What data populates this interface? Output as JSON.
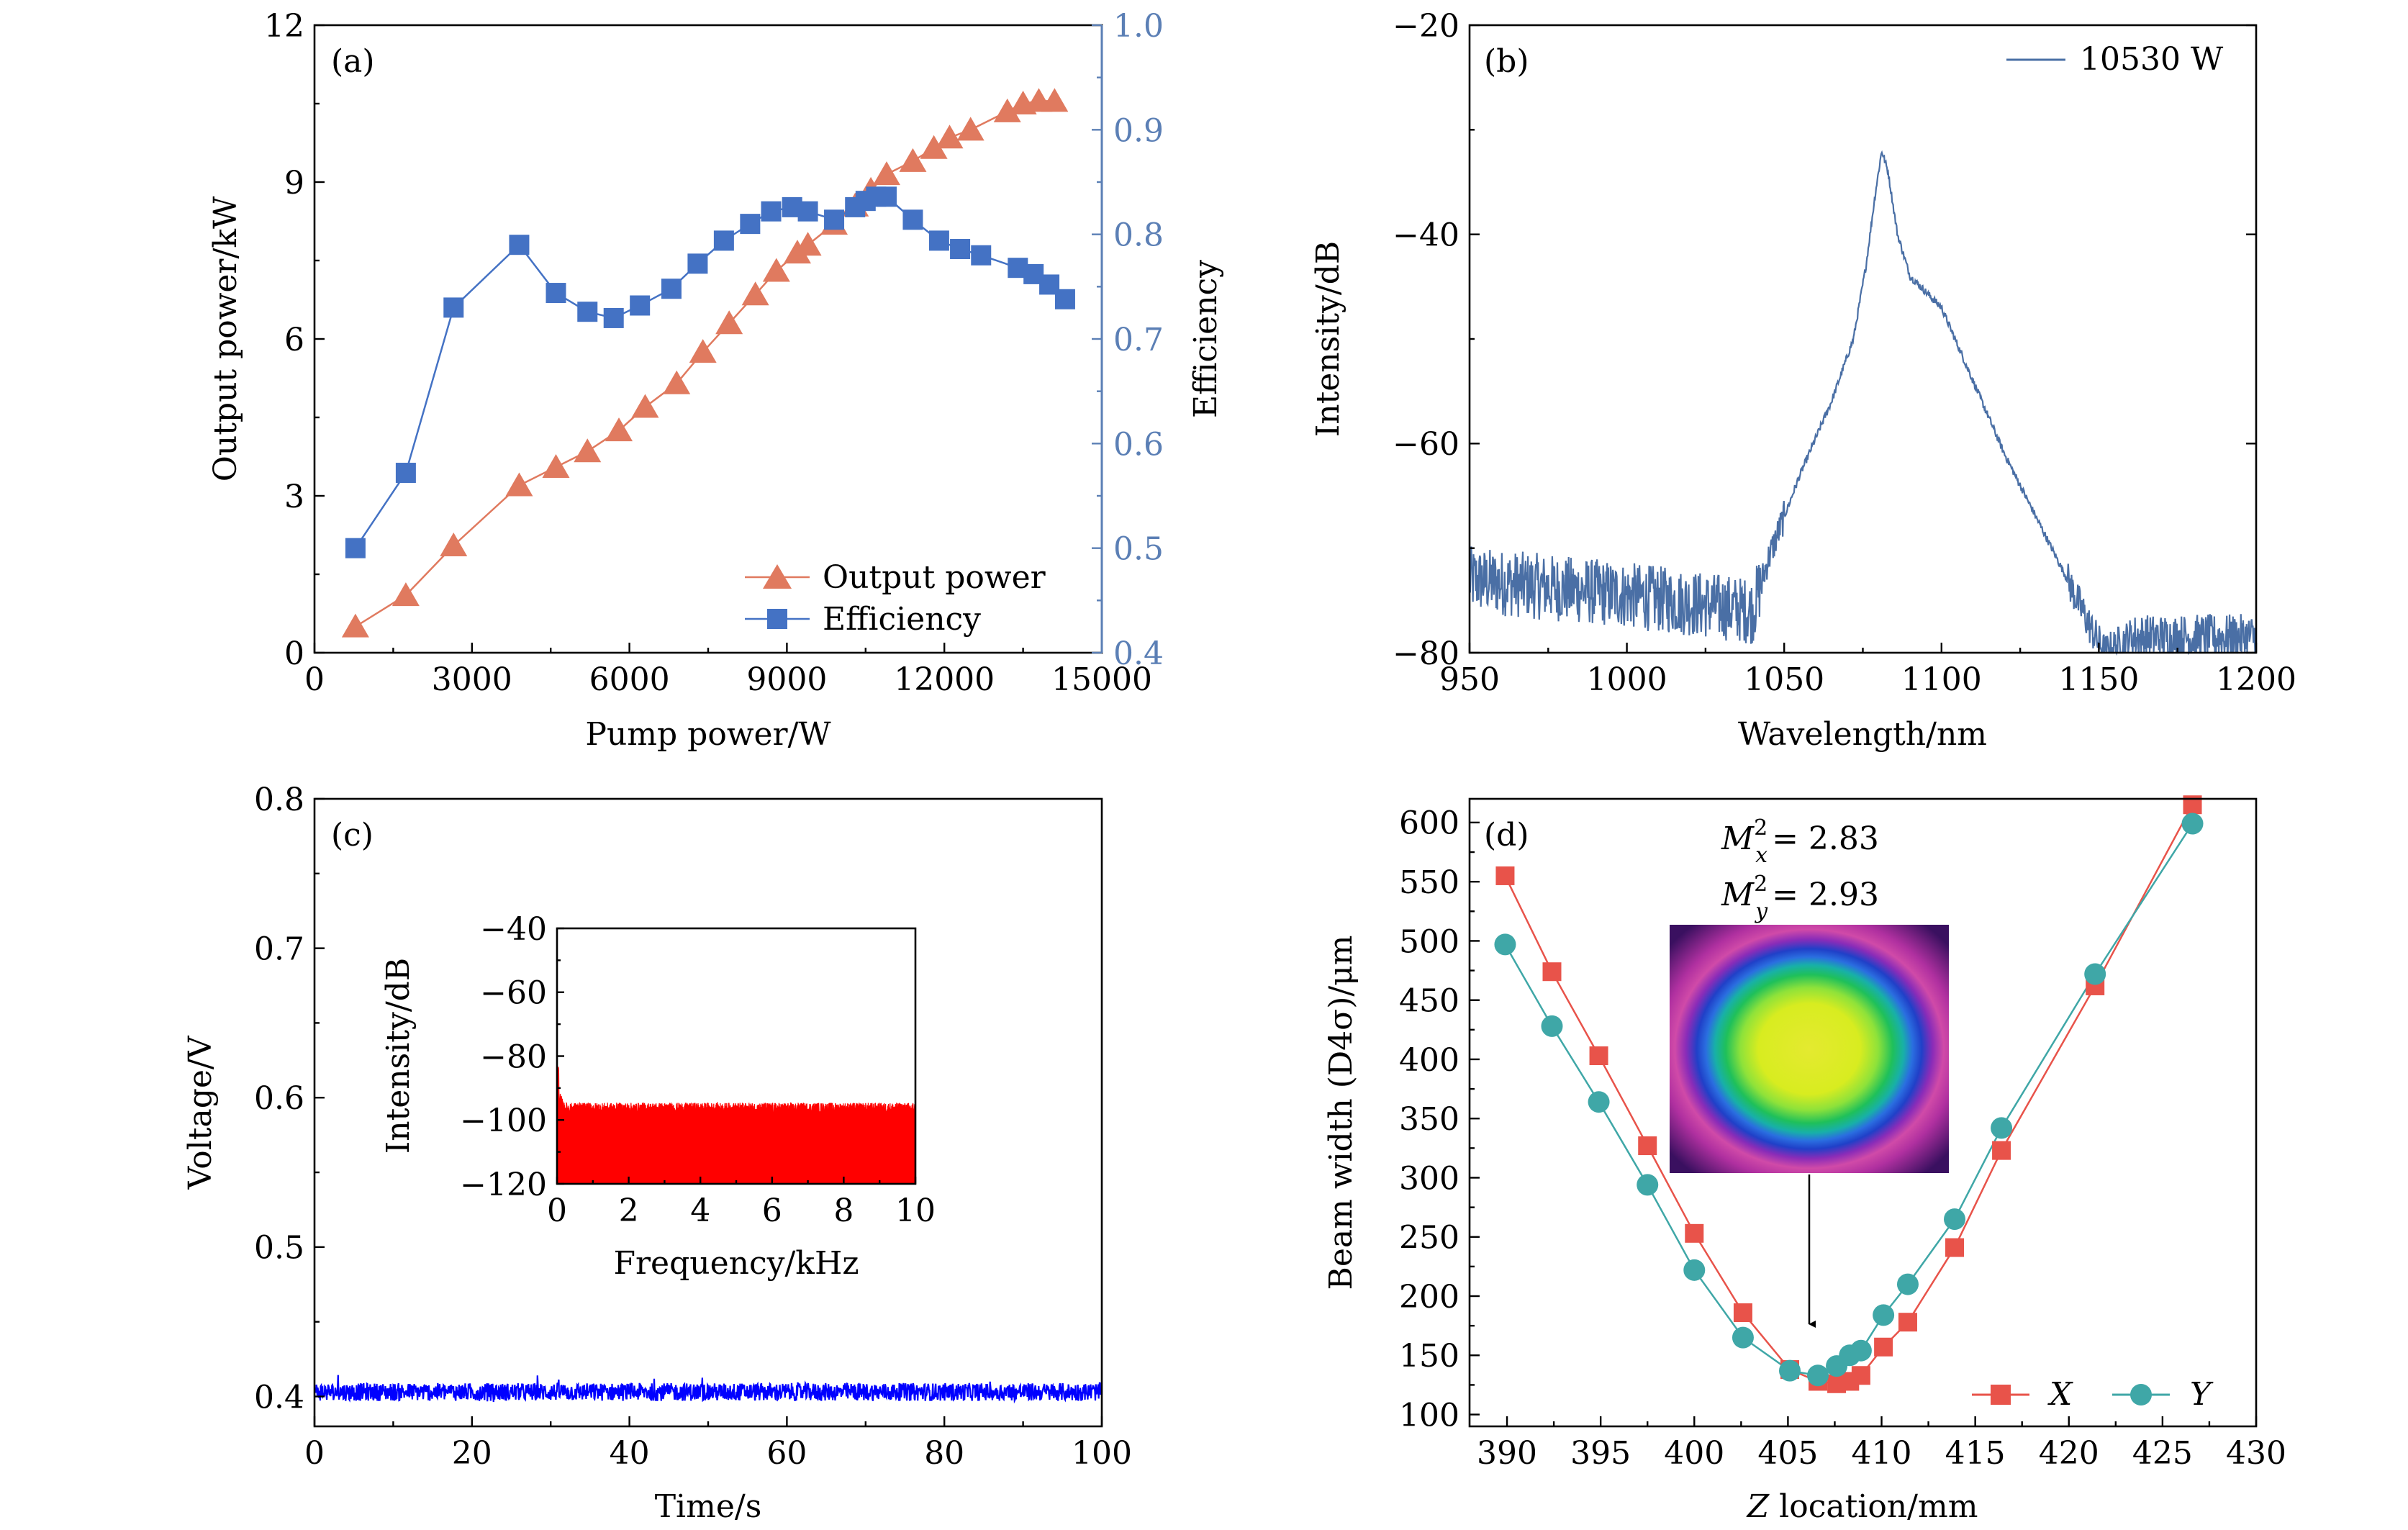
{
  "panels": {
    "a": {
      "label": "(a)",
      "xlabel": "Pump power/W",
      "ylabel_left": "Output power/kW",
      "ylabel_right": "Efficiency",
      "xticks": [
        "0",
        "3000",
        "6000",
        "9000",
        "12000",
        "15000"
      ],
      "yticks_left": [
        "0",
        "3",
        "6",
        "9",
        "12"
      ],
      "yticks_right": [
        "0.4",
        "0.5",
        "0.6",
        "0.7",
        "0.8",
        "0.9",
        "1.0"
      ],
      "legend": [
        "Output power",
        "Efficiency"
      ]
    },
    "b": {
      "label": "(b)",
      "xlabel": "Wavelength/nm",
      "ylabel": "Intensity/dB",
      "xticks": [
        "950",
        "1000",
        "1050",
        "1100",
        "1150",
        "1200"
      ],
      "yticks": [
        "−80",
        "−60",
        "−40",
        "−20"
      ],
      "legend": [
        "10530 W"
      ]
    },
    "c": {
      "label": "(c)",
      "xlabel": "Time/s",
      "ylabel": "Voltage/V",
      "xticks": [
        "0",
        "20",
        "40",
        "60",
        "80",
        "100"
      ],
      "yticks": [
        "0.4",
        "0.5",
        "0.6",
        "0.7",
        "0.8"
      ],
      "inset": {
        "xlabel": "Frequency/kHz",
        "ylabel": "Intensity/dB",
        "xticks": [
          "0",
          "2",
          "4",
          "6",
          "8",
          "10"
        ],
        "yticks": [
          "−120",
          "−100",
          "−80",
          "−60",
          "−40"
        ]
      }
    },
    "d": {
      "label": "(d)",
      "xlabel_italic": "Z",
      "xlabel_rest": " location/mm",
      "ylabel": "Beam width (D4σ)/μm",
      "xticks": [
        "390",
        "395",
        "400",
        "405",
        "410",
        "415",
        "420",
        "425",
        "430"
      ],
      "yticks": [
        "100",
        "150",
        "200",
        "250",
        "300",
        "350",
        "400",
        "450",
        "500",
        "550",
        "600"
      ],
      "m2x_label": "M",
      "m2x_sub": "x",
      "m2x_value": "= 2.83",
      "m2y_label": "M",
      "m2y_sub": "y",
      "m2y_value": "= 2.93",
      "legend": [
        "X",
        "Y"
      ]
    }
  },
  "colors": {
    "output_power": "#E07A5F",
    "efficiency": "#4472C4",
    "efficiency_axis": "#5B7FB5",
    "spectrum": "#4A6FA5",
    "voltage": "#0000FF",
    "rin": "#FF0000",
    "beam_x": "#E8534A",
    "beam_y": "#3FA7A7"
  },
  "chart_data": [
    {
      "panel": "a",
      "type": "line",
      "xlabel": "Pump power/W",
      "xlim": [
        0,
        15000
      ],
      "series": [
        {
          "name": "Output power",
          "axis": "left",
          "ylabel": "Output power/kW",
          "ylim": [
            0,
            12
          ],
          "marker": "triangle",
          "x": [
            780,
            1740,
            2650,
            3900,
            4600,
            5200,
            5800,
            6300,
            6900,
            7400,
            7900,
            8400,
            8800,
            9200,
            9400,
            9900,
            10300,
            10600,
            10900,
            11400,
            11800,
            12100,
            12500,
            13200,
            13500,
            13800,
            14100
          ],
          "y": [
            0.5,
            1.1,
            2.05,
            3.2,
            3.55,
            3.85,
            4.25,
            4.7,
            5.15,
            5.75,
            6.3,
            6.85,
            7.3,
            7.65,
            7.8,
            8.2,
            8.55,
            8.85,
            9.15,
            9.4,
            9.65,
            9.85,
            10.0,
            10.35,
            10.5,
            10.55,
            10.55
          ]
        },
        {
          "name": "Efficiency",
          "axis": "right",
          "ylabel": "Efficiency",
          "ylim": [
            0.4,
            1.0
          ],
          "marker": "square",
          "x": [
            780,
            1740,
            2650,
            3900,
            4600,
            5200,
            5700,
            6200,
            6800,
            7300,
            7800,
            8300,
            8700,
            9100,
            9400,
            9900,
            10300,
            10500,
            10700,
            10900,
            11400,
            11900,
            12300,
            12700,
            13400,
            13700,
            14000,
            14300
          ],
          "y": [
            0.5,
            0.572,
            0.73,
            0.79,
            0.744,
            0.726,
            0.72,
            0.732,
            0.748,
            0.772,
            0.794,
            0.81,
            0.822,
            0.826,
            0.822,
            0.814,
            0.826,
            0.832,
            0.836,
            0.836,
            0.814,
            0.794,
            0.786,
            0.78,
            0.768,
            0.762,
            0.752,
            0.738
          ]
        }
      ]
    },
    {
      "panel": "b",
      "type": "line",
      "xlabel": "Wavelength/nm",
      "ylabel": "Intensity/dB",
      "xlim": [
        950,
        1200
      ],
      "ylim": [
        -80,
        -20
      ],
      "series": [
        {
          "name": "10530 W",
          "x": [
            950,
            1000,
            1040,
            1045,
            1055,
            1065,
            1072,
            1076,
            1079,
            1081,
            1083,
            1086,
            1090,
            1095,
            1100,
            1110,
            1120,
            1130,
            1140,
            1148,
            1152,
            1160,
            1200
          ],
          "y": [
            -73,
            -74.5,
            -76,
            -71,
            -63,
            -56,
            -50,
            -43,
            -36,
            -32,
            -34,
            -40,
            -44,
            -45.5,
            -47,
            -54,
            -61,
            -67,
            -73,
            -78,
            -80,
            -78.5,
            -78.5
          ]
        }
      ]
    },
    {
      "panel": "c",
      "type": "line",
      "xlabel": "Time/s",
      "ylabel": "Voltage/V",
      "xlim": [
        0,
        100
      ],
      "ylim": [
        0.38,
        0.8
      ],
      "series": [
        {
          "name": "",
          "x": [
            0,
            100
          ],
          "y": [
            0.403,
            0.403
          ]
        }
      ]
    },
    {
      "panel": "c-inset",
      "type": "line",
      "xlabel": "Frequency/kHz",
      "ylabel": "Intensity/dB",
      "xlim": [
        0,
        10
      ],
      "ylim": [
        -120,
        -40
      ],
      "series": [
        {
          "name": "",
          "x": [
            0,
            0.05,
            0.2,
            10
          ],
          "y": [
            -85,
            -92,
            -96,
            -96
          ]
        }
      ]
    },
    {
      "panel": "d",
      "type": "line",
      "xlabel": "Z location/mm",
      "ylabel": "Beam width (D4σ)/μm",
      "xlim": [
        388,
        430
      ],
      "ylim": [
        90,
        620
      ],
      "series": [
        {
          "name": "X",
          "marker": "square",
          "x": [
            389.9,
            392.4,
            394.9,
            397.5,
            400.0,
            402.6,
            405.1,
            406.6,
            407.6,
            408.3,
            408.9,
            410.1,
            411.4,
            413.9,
            416.4,
            421.4,
            426.6
          ],
          "y": [
            555,
            474,
            403,
            327,
            253,
            186,
            138,
            128,
            126,
            128,
            133,
            157,
            178,
            241,
            323,
            462,
            615
          ]
        },
        {
          "name": "Y",
          "marker": "circle",
          "x": [
            389.9,
            392.4,
            394.9,
            397.5,
            400.0,
            402.6,
            405.1,
            406.6,
            407.6,
            408.3,
            408.9,
            410.1,
            411.4,
            413.9,
            416.4,
            421.4,
            426.6
          ],
          "y": [
            497,
            428,
            364,
            294,
            222,
            165,
            137,
            133,
            141,
            150,
            154,
            184,
            210,
            265,
            342,
            472,
            599
          ]
        }
      ]
    }
  ]
}
